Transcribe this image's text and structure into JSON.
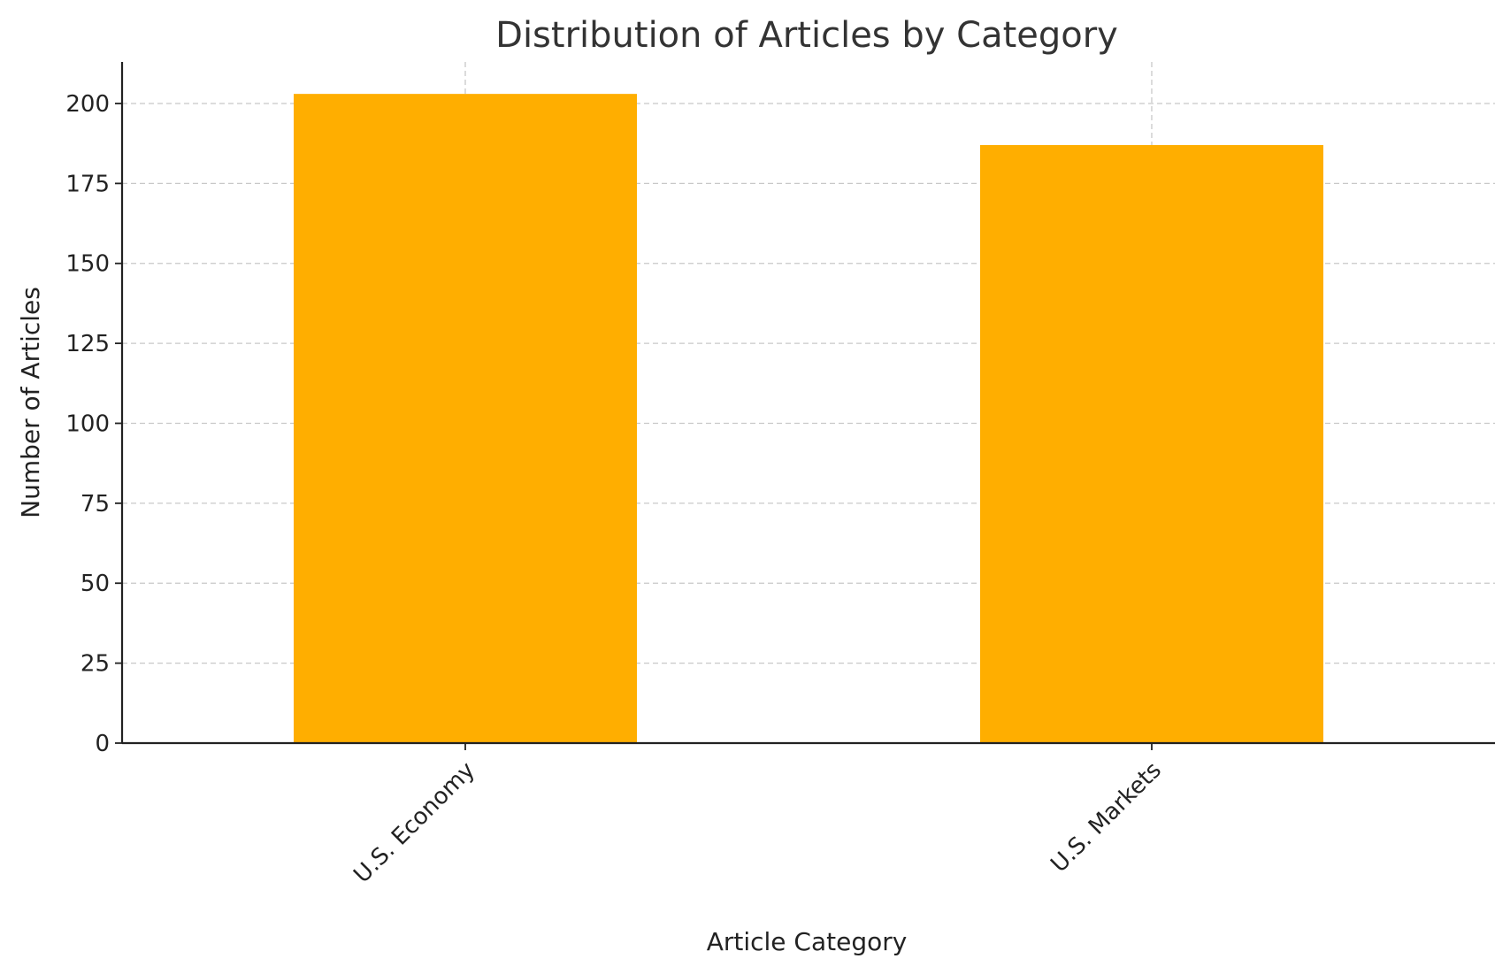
{
  "chart_data": {
    "type": "bar",
    "title": "Distribution of Articles by Category",
    "xlabel": "Article Category",
    "ylabel": "Number of Articles",
    "categories": [
      "U.S. Economy",
      "U.S. Markets"
    ],
    "values": [
      203,
      187
    ],
    "ylim": [
      0,
      213
    ],
    "yticks": [
      0,
      25,
      50,
      75,
      100,
      125,
      150,
      175,
      200
    ],
    "grid": true,
    "bar_color": "#FFAE00",
    "xtick_rotation_deg": -45
  }
}
